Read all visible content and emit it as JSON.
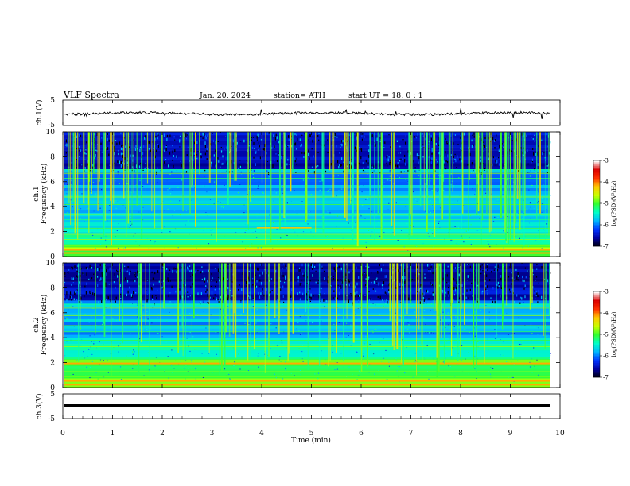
{
  "header": {
    "title": "VLF  Spectra",
    "date": "Jan. 20, 2024",
    "station": "station= ATH",
    "start": "start  UT =   18: 0   : 1"
  },
  "chart_data": {
    "type": "heatmap",
    "panels": [
      {
        "id": "ch1-waveform",
        "ylabel": "ch.1(V)",
        "yticks": [
          "5",
          "-5"
        ],
        "ylim": [
          -5,
          5
        ],
        "trace": "noisy waveform near 0 V with occasional spikes"
      },
      {
        "id": "ch1-spectrogram",
        "ylabel": "Frequency  (kHz)",
        "channel_label": "ch.1",
        "yticks": [
          "0",
          "2",
          "4",
          "6",
          "8",
          "10"
        ],
        "ylim": [
          0,
          10
        ]
      },
      {
        "id": "ch2-spectrogram",
        "ylabel": "Frequency  (kHz)",
        "channel_label": "ch.2",
        "yticks": [
          "0",
          "2",
          "4",
          "6",
          "8",
          "10"
        ],
        "ylim": [
          0,
          10
        ]
      },
      {
        "id": "ch3-waveform",
        "ylabel": "ch.3(V)",
        "yticks": [
          "5",
          "-5"
        ],
        "ylim": [
          -5,
          5
        ],
        "trace": "thick flat line at approximately -2 V"
      }
    ],
    "x": {
      "xlabel": "Time  (min)",
      "xticks": [
        "0",
        "1",
        "2",
        "3",
        "4",
        "5",
        "6",
        "7",
        "8",
        "9",
        "10"
      ],
      "xlim": [
        0,
        10
      ],
      "data_end_min": 9.8
    },
    "colorbar": {
      "label": "log(PSD)(V²/Hz)",
      "ticks": [
        "-3",
        "-4",
        "-5",
        "-6",
        "-7"
      ],
      "range": [
        -7,
        -3
      ],
      "colors": [
        "#000000",
        "#0000a0",
        "#0032ff",
        "#00b4ff",
        "#00ffc8",
        "#32ff32",
        "#c8ff00",
        "#ffc800",
        "#ff3200",
        "#dc0000",
        "#ffffff"
      ]
    }
  }
}
